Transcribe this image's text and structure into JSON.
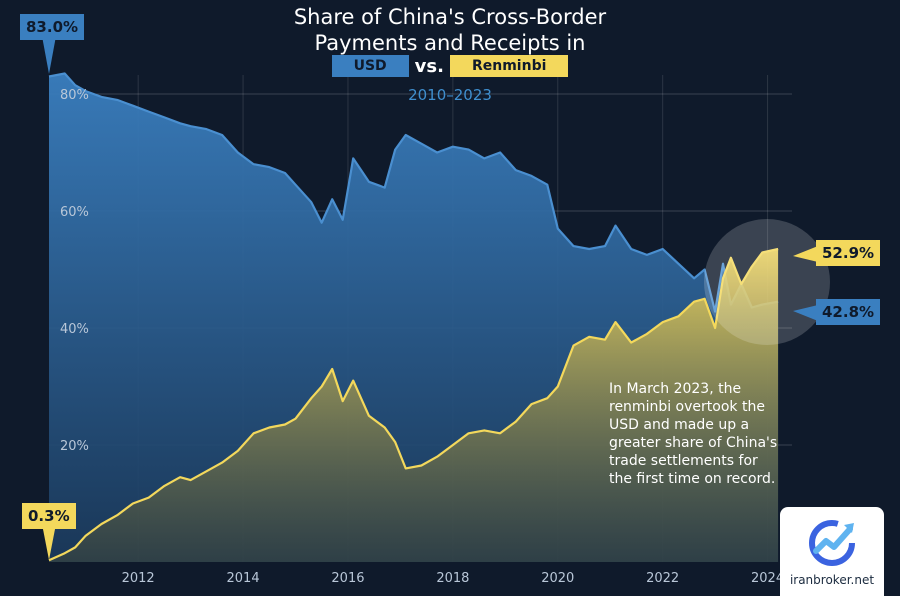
{
  "header": {
    "title_line1": "Share of China's Cross-Border",
    "title_line2": "Payments and Receipts in",
    "legend_usd": "USD",
    "legend_vs": "vs.",
    "legend_rmb": "Renminbi",
    "subtitle": "2010–2023"
  },
  "annotation": {
    "line1": "In March 2023, the",
    "line2": "renminbi overtook the",
    "line3": "USD and made up a",
    "line4": "greater share of China's",
    "line5": "trade settlements for",
    "line6": "the first time on record."
  },
  "callouts": {
    "usd_start": "83.0%",
    "rmb_start": "0.3%",
    "rmb_end": "52.9%",
    "usd_end": "42.8%"
  },
  "watermark": {
    "text": "iranbroker.net",
    "icon": "chart-trend-icon"
  },
  "colors": {
    "background": "#0f1a2b",
    "usd": "#3a7fc0",
    "renminbi": "#f3d85c",
    "subtitle": "#3f8fcf"
  },
  "chart_data": {
    "type": "area",
    "title": "Share of China's Cross-Border Payments and Receipts in USD vs. Renminbi",
    "subtitle": "2010–2023",
    "xlabel": "",
    "ylabel": "",
    "x_ticks": [
      "2012",
      "2014",
      "2016",
      "2018",
      "2020",
      "2022",
      "2024"
    ],
    "y_ticks": [
      "20%",
      "40%",
      "60%",
      "80%"
    ],
    "xlim": [
      2010.3,
      2024.5
    ],
    "ylim": [
      0,
      100
    ],
    "grid": true,
    "series": [
      {
        "name": "USD",
        "x": [
          2010.3,
          2010.6,
          2010.8,
          2011.0,
          2011.3,
          2011.6,
          2011.9,
          2012.2,
          2012.5,
          2012.8,
          2013.0,
          2013.3,
          2013.6,
          2013.9,
          2014.2,
          2014.5,
          2014.8,
          2015.0,
          2015.3,
          2015.5,
          2015.7,
          2015.9,
          2016.1,
          2016.4,
          2016.7,
          2016.9,
          2017.1,
          2017.4,
          2017.7,
          2018.0,
          2018.3,
          2018.6,
          2018.9,
          2019.2,
          2019.5,
          2019.8,
          2020.0,
          2020.3,
          2020.6,
          2020.9,
          2021.1,
          2021.4,
          2021.7,
          2022.0,
          2022.3,
          2022.6,
          2022.8,
          2023.0,
          2023.15,
          2023.3,
          2023.5,
          2023.7,
          2023.9,
          2024.2
        ],
        "values": [
          83.0,
          83.5,
          81.5,
          80.5,
          79.5,
          79.0,
          78.0,
          77.0,
          76.0,
          75.0,
          74.5,
          74.0,
          73.0,
          70.0,
          68.0,
          67.5,
          66.5,
          64.5,
          61.5,
          58.0,
          62.0,
          58.5,
          69.0,
          65.0,
          64.0,
          70.5,
          73.0,
          71.5,
          70.0,
          71.0,
          70.5,
          69.0,
          70.0,
          67.0,
          66.0,
          64.5,
          57.0,
          54.0,
          53.5,
          54.0,
          57.5,
          53.5,
          52.5,
          53.5,
          51.0,
          48.5,
          50.0,
          42.8,
          51.0,
          44.0,
          47.5,
          43.5,
          44.0,
          44.5
        ]
      },
      {
        "name": "Renminbi",
        "x": [
          2010.3,
          2010.6,
          2010.8,
          2011.0,
          2011.3,
          2011.6,
          2011.9,
          2012.2,
          2012.5,
          2012.8,
          2013.0,
          2013.3,
          2013.6,
          2013.9,
          2014.2,
          2014.5,
          2014.8,
          2015.0,
          2015.3,
          2015.5,
          2015.7,
          2015.9,
          2016.1,
          2016.4,
          2016.7,
          2016.9,
          2017.1,
          2017.4,
          2017.7,
          2018.0,
          2018.3,
          2018.6,
          2018.9,
          2019.2,
          2019.5,
          2019.8,
          2020.0,
          2020.3,
          2020.6,
          2020.9,
          2021.1,
          2021.4,
          2021.7,
          2022.0,
          2022.3,
          2022.6,
          2022.8,
          2023.0,
          2023.15,
          2023.3,
          2023.5,
          2023.7,
          2023.9,
          2024.2
        ],
        "values": [
          0.3,
          1.5,
          2.5,
          4.5,
          6.5,
          8.0,
          10.0,
          11.0,
          13.0,
          14.5,
          14.0,
          15.5,
          17.0,
          19.0,
          22.0,
          23.0,
          23.5,
          24.5,
          28.0,
          30.0,
          33.0,
          27.5,
          31.0,
          25.0,
          23.0,
          20.5,
          16.0,
          16.5,
          18.0,
          20.0,
          22.0,
          22.5,
          22.0,
          24.0,
          27.0,
          28.0,
          30.0,
          37.0,
          38.5,
          38.0,
          41.0,
          37.5,
          39.0,
          41.0,
          42.0,
          44.5,
          45.0,
          40.0,
          48.5,
          52.0,
          47.5,
          50.5,
          52.9,
          53.5
        ]
      }
    ]
  }
}
